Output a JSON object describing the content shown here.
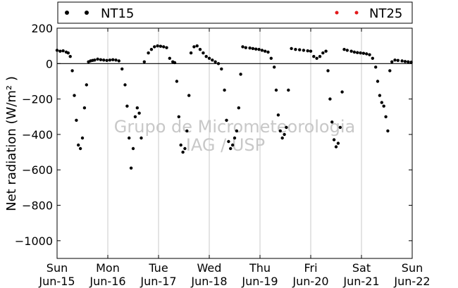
{
  "chart_data": {
    "type": "scatter",
    "title": "",
    "xlabel": "",
    "ylabel": "Net radiation (W/m² )",
    "ylim": [
      -1100,
      200
    ],
    "xlim": [
      0,
      7
    ],
    "yticks": [
      200,
      0,
      -200,
      -400,
      -600,
      -800,
      -1000
    ],
    "ytick_labels": [
      "200",
      "0",
      "−200",
      "−400",
      "−600",
      "−800",
      "−1000"
    ],
    "xticks": [
      {
        "value": 0,
        "day": "Sun",
        "date": "Jun-15"
      },
      {
        "value": 1,
        "day": "Mon",
        "date": "Jun-16"
      },
      {
        "value": 2,
        "day": "Tue",
        "date": "Jun-17"
      },
      {
        "value": 3,
        "day": "Wed",
        "date": "Jun-18"
      },
      {
        "value": 4,
        "day": "Thu",
        "date": "Jun-19"
      },
      {
        "value": 5,
        "day": "Fri",
        "date": "Jun-20"
      },
      {
        "value": 6,
        "day": "Sat",
        "date": "Jun-21"
      },
      {
        "value": 7,
        "day": "Sun",
        "date": "Jun-22"
      }
    ],
    "zero_line": true,
    "vertical_gridlines": true,
    "legend_position": "top",
    "watermark": [
      "Grupo de Micrometeorologia",
      "IAG / USP"
    ],
    "series": [
      {
        "name": "NT15",
        "color": "#000000",
        "x": [
          0.0,
          0.06,
          0.12,
          0.18,
          0.22,
          0.26,
          0.3,
          0.34,
          0.38,
          0.42,
          0.46,
          0.5,
          0.54,
          0.58,
          0.62,
          0.66,
          0.7,
          0.74,
          0.8,
          0.86,
          0.92,
          0.98,
          1.04,
          1.1,
          1.16,
          1.22,
          1.28,
          1.34,
          1.38,
          1.42,
          1.46,
          1.5,
          1.54,
          1.58,
          1.62,
          1.66,
          1.72,
          1.8,
          1.86,
          1.92,
          1.98,
          2.04,
          2.1,
          2.16,
          2.22,
          2.28,
          2.32,
          2.36,
          2.4,
          2.44,
          2.48,
          2.52,
          2.56,
          2.6,
          2.64,
          2.7,
          2.76,
          2.82,
          2.88,
          2.94,
          3.0,
          3.06,
          3.12,
          3.18,
          3.24,
          3.3,
          3.34,
          3.38,
          3.42,
          3.46,
          3.5,
          3.54,
          3.58,
          3.62,
          3.66,
          3.72,
          3.8,
          3.86,
          3.92,
          3.98,
          4.04,
          4.1,
          4.16,
          4.22,
          4.28,
          4.32,
          4.36,
          4.4,
          4.44,
          4.48,
          4.52,
          4.56,
          4.62,
          4.7,
          4.78,
          4.86,
          4.94,
          5.0,
          5.06,
          5.12,
          5.18,
          5.24,
          5.3,
          5.34,
          5.38,
          5.42,
          5.46,
          5.5,
          5.54,
          5.58,
          5.62,
          5.66,
          5.72,
          5.8,
          5.86,
          5.92,
          5.98,
          6.04,
          6.1,
          6.16,
          6.22,
          6.28,
          6.32,
          6.36,
          6.4,
          6.44,
          6.48,
          6.52,
          6.56,
          6.6,
          6.66,
          6.72,
          6.8,
          6.86,
          6.92,
          6.98
        ],
        "y": [
          75,
          70,
          72,
          65,
          60,
          40,
          -40,
          -180,
          -320,
          -460,
          -480,
          -420,
          -250,
          -120,
          10,
          15,
          18,
          20,
          25,
          22,
          20,
          18,
          20,
          22,
          20,
          15,
          -30,
          -120,
          -240,
          -420,
          -590,
          -480,
          -300,
          -250,
          -280,
          -420,
          10,
          60,
          80,
          95,
          100,
          98,
          95,
          90,
          30,
          10,
          5,
          -100,
          -300,
          -460,
          -500,
          -480,
          -380,
          -180,
          60,
          95,
          100,
          80,
          60,
          40,
          30,
          20,
          10,
          0,
          -30,
          -150,
          -320,
          -440,
          -480,
          -460,
          -420,
          -380,
          -250,
          -60,
          95,
          90,
          88,
          85,
          82,
          80,
          75,
          70,
          65,
          30,
          -20,
          -150,
          -290,
          -380,
          -420,
          -400,
          -360,
          -150,
          85,
          80,
          78,
          75,
          72,
          70,
          40,
          30,
          40,
          60,
          70,
          -40,
          -200,
          -330,
          -430,
          -470,
          -450,
          -360,
          -160,
          80,
          75,
          70,
          65,
          62,
          60,
          58,
          55,
          50,
          30,
          -20,
          -100,
          -180,
          -220,
          -240,
          -300,
          -380,
          -40,
          10,
          20,
          18,
          15,
          12,
          10,
          8
        ]
      },
      {
        "name": "NT25",
        "color": "#e31a1c",
        "x": [],
        "y": []
      }
    ]
  }
}
